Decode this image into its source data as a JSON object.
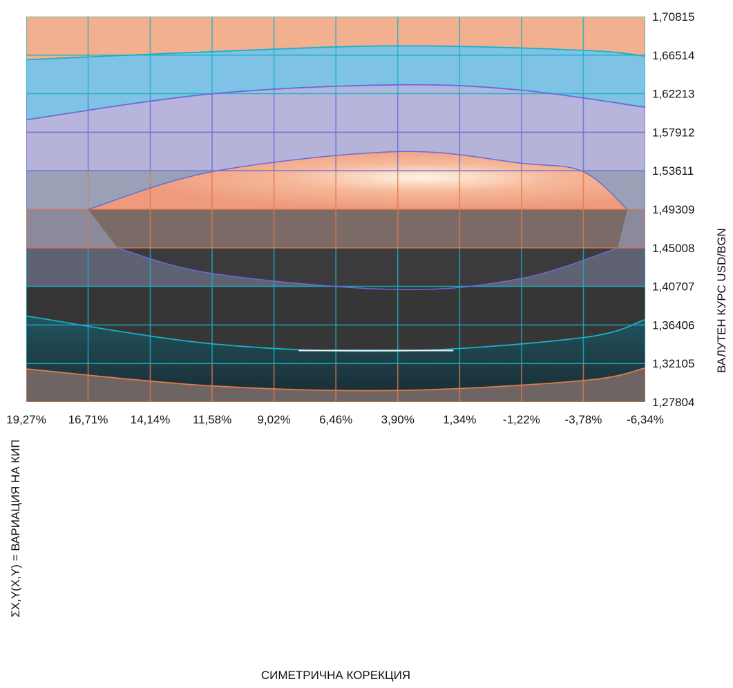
{
  "chart_data": {
    "type": "heatmap",
    "title": "",
    "xlabel": "СИМЕТРИЧНА КОРЕКЦИЯ",
    "ylabel_right": "ВАЛУТЕН КУРС USD/BGN",
    "ylabel_left": "ΣX,Y(X,Y) = ВАРИАЦИЯ НА КИП",
    "x_ticks": [
      "19,27%",
      "16,71%",
      "14,14%",
      "11,58%",
      "9,02%",
      "6,46%",
      "3,90%",
      "1,34%",
      "-1,22%",
      "-3,78%",
      "-6,34%"
    ],
    "y_ticks": [
      "1,70815",
      "1,66514",
      "1,62213",
      "1,57912",
      "1,53611",
      "1,49309",
      "1,45008",
      "1,40707",
      "1,36406",
      "1,32105",
      "1,27804"
    ],
    "x_range": [
      19.27,
      -6.34
    ],
    "y_range": [
      1.27804,
      1.70815
    ],
    "grid": true,
    "legend": "none",
    "contours": {
      "top_band_lower": [
        [
          19.27,
          1.66
        ],
        [
          11.58,
          1.669
        ],
        [
          3.9,
          1.6755
        ],
        [
          -3.78,
          1.6705
        ],
        [
          -6.34,
          1.664
        ]
      ],
      "second_band_lower": [
        [
          19.27,
          1.593
        ],
        [
          11.58,
          1.622
        ],
        [
          3.9,
          1.632
        ],
        [
          -1.22,
          1.626
        ],
        [
          -6.34,
          1.607
        ]
      ],
      "upper_cap_center": [
        [
          16.71,
          1.493
        ],
        [
          11.58,
          1.535
        ],
        [
          3.9,
          1.5575
        ],
        [
          -1.22,
          1.5445
        ],
        [
          -3.78,
          1.535
        ],
        [
          -5.6,
          1.493
        ]
      ],
      "lower_cap_center": [
        [
          15.5,
          1.45
        ],
        [
          11.58,
          1.4215
        ],
        [
          3.9,
          1.4035
        ],
        [
          -1.22,
          1.416
        ],
        [
          -5.2,
          1.45
        ]
      ],
      "teal_upper": [
        [
          19.27,
          1.374
        ],
        [
          11.58,
          1.343
        ],
        [
          3.9,
          1.335
        ],
        [
          -3.78,
          1.35
        ],
        [
          -6.34,
          1.37
        ]
      ],
      "teal_lower": [
        [
          19.27,
          1.315
        ],
        [
          11.58,
          1.296
        ],
        [
          3.9,
          1.291
        ],
        [
          -3.78,
          1.302
        ],
        [
          -6.34,
          1.316
        ]
      ]
    },
    "colors": {
      "salmon": "#f2b08e",
      "light_blue": "#7ec3e6",
      "lavender": "#b8b8e0",
      "slate": "#8e93a8",
      "peach": "#f0a080",
      "taupe": "#7a6c6c",
      "dark_slate": "#5a6070",
      "charcoal": "#353535",
      "teal_dark": "#1d3a45",
      "grid_blue": "#6a6ad8",
      "grid_orange": "#e07a4a",
      "grid_teal": "#1ab0c8"
    }
  }
}
